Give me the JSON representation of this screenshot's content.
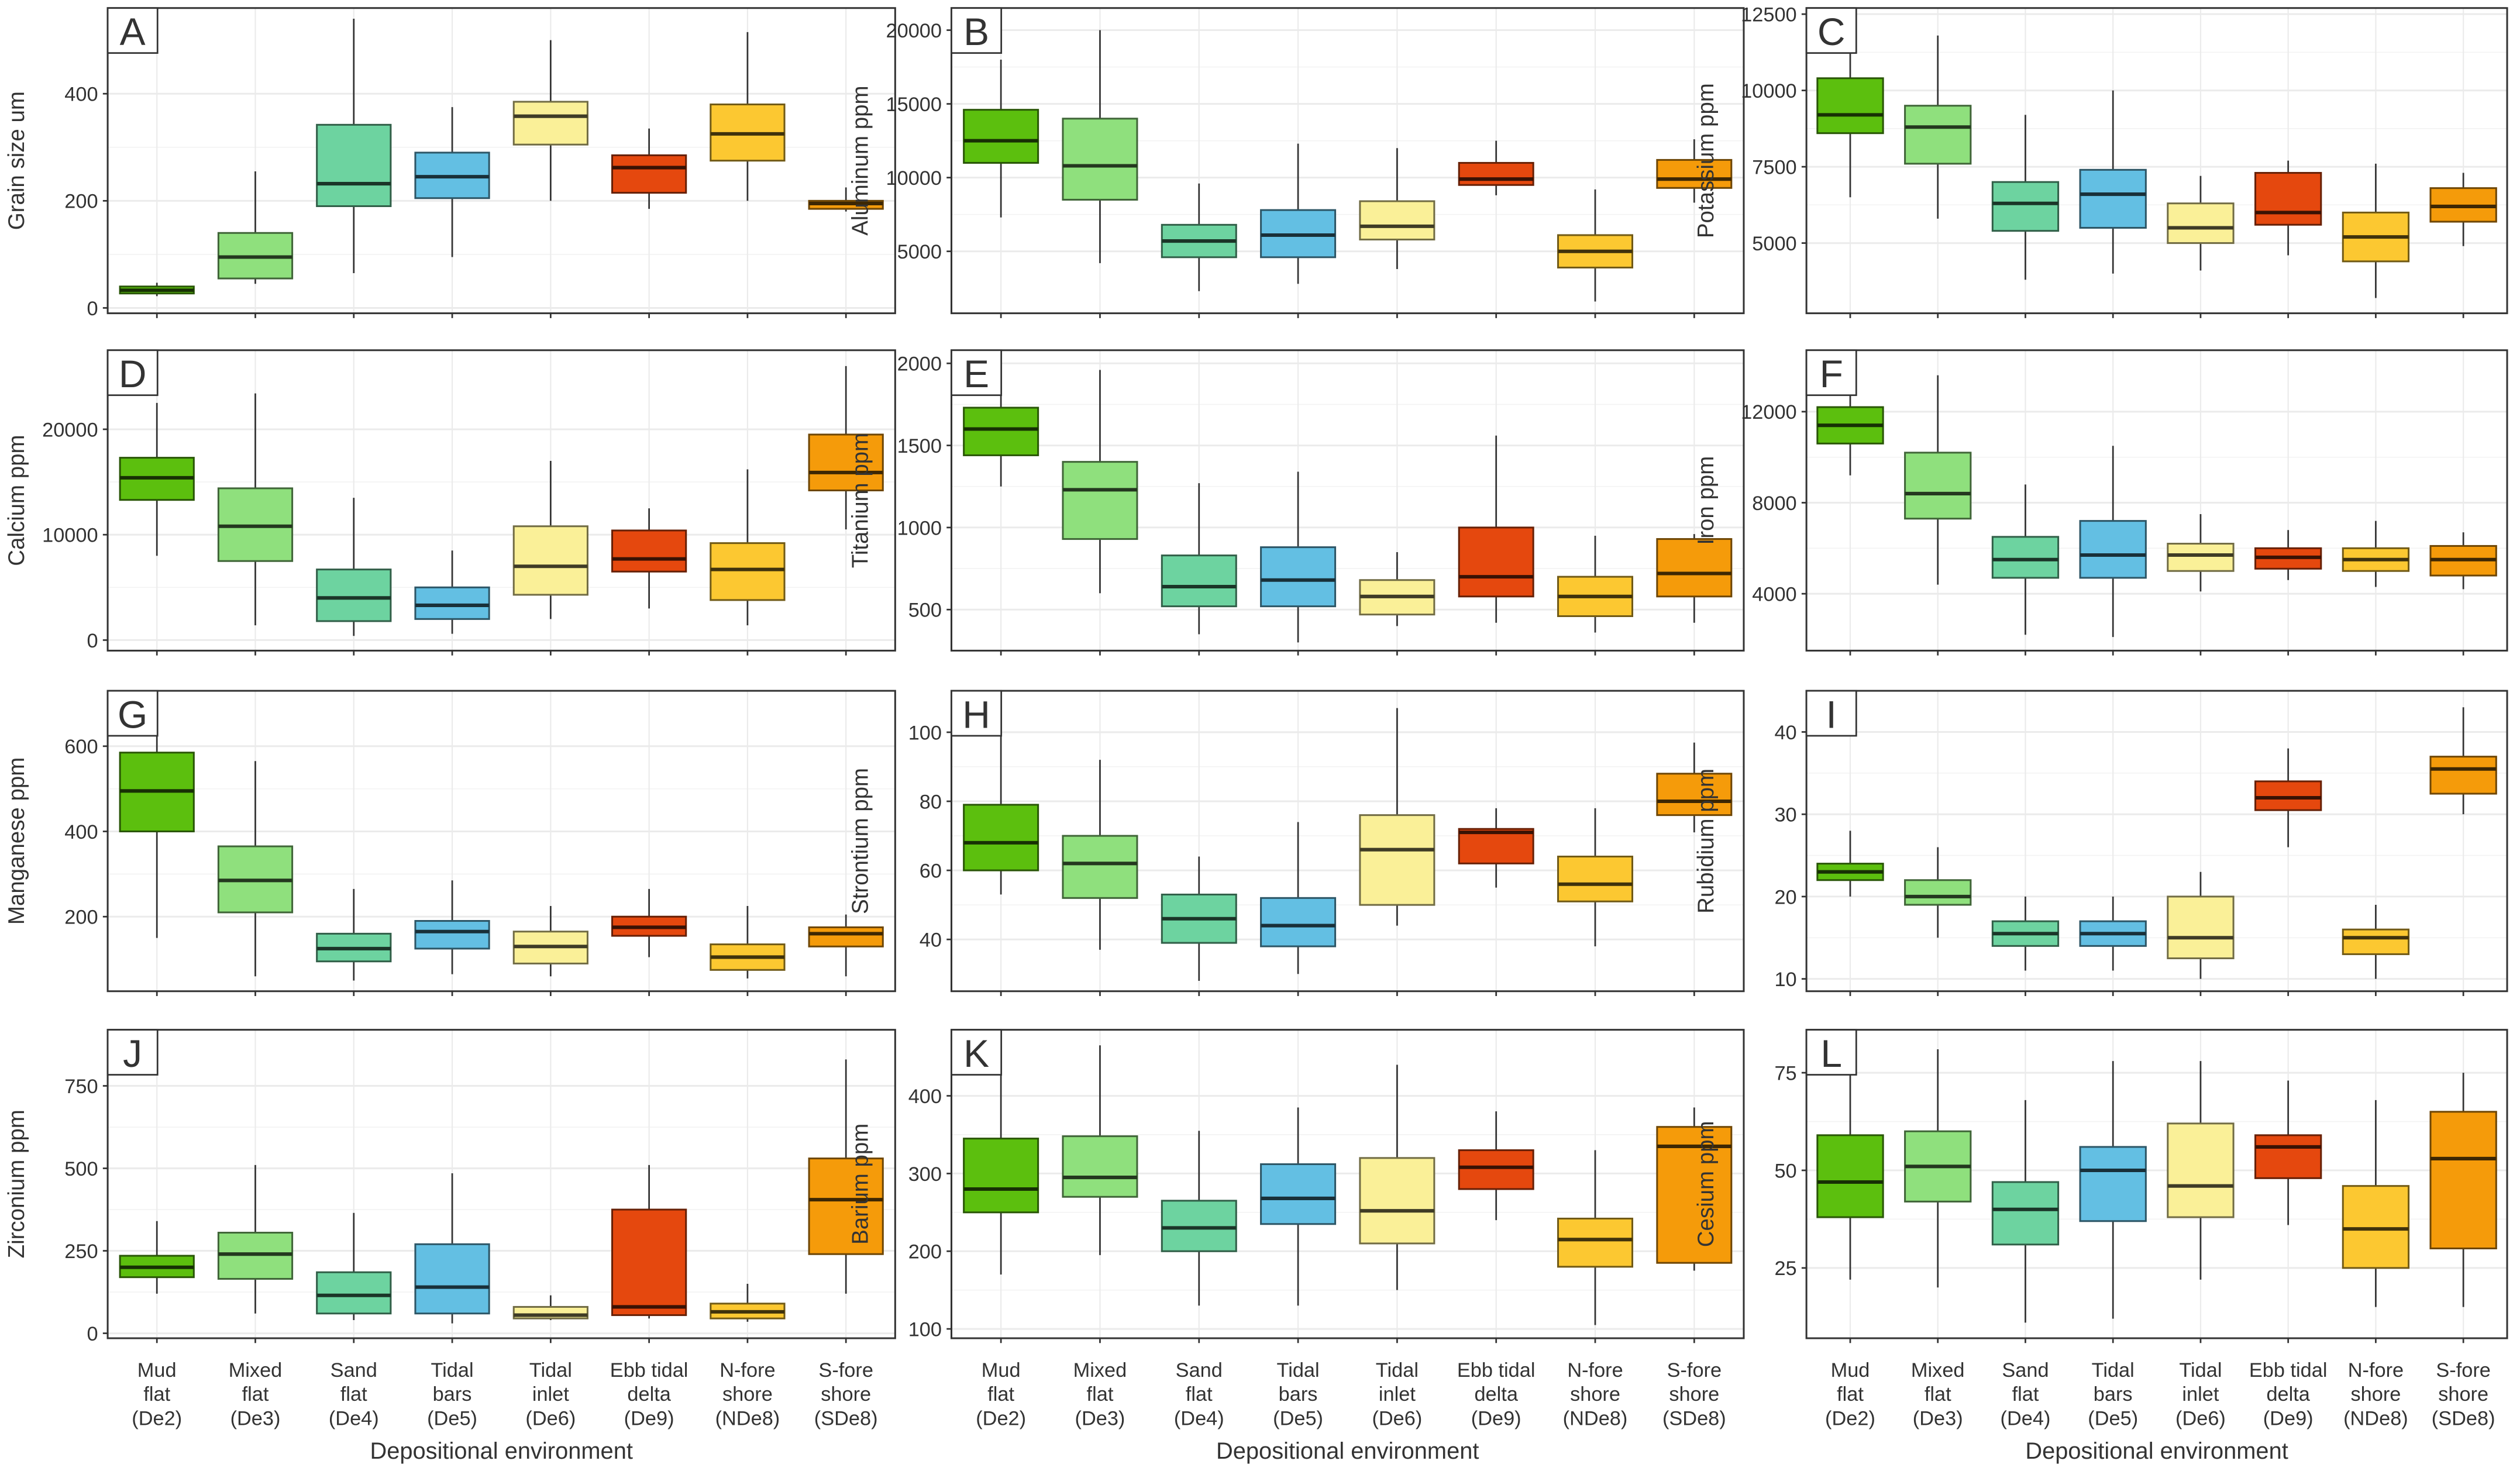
{
  "chart_data": {
    "type": "box",
    "layout": "4x3 grid",
    "categories": [
      [
        "Mud",
        "flat",
        "(De2)"
      ],
      [
        "Mixed",
        "flat",
        "(De3)"
      ],
      [
        "Sand",
        "flat",
        "(De4)"
      ],
      [
        "Tidal",
        "bars",
        "(De5)"
      ],
      [
        "Tidal",
        "inlet",
        "(De6)"
      ],
      [
        "Ebb tidal",
        "delta",
        "(De9)"
      ],
      [
        "N-fore",
        "shore",
        "(NDe8)"
      ],
      [
        "S-fore",
        "shore",
        "(SDe8)"
      ]
    ],
    "colors": [
      "#5cbf0e",
      "#8fe07d",
      "#6dd3a0",
      "#63bfe3",
      "#faf098",
      "#e5480e",
      "#fcc831",
      "#f59b0a"
    ],
    "xlabel": "Depositional environment",
    "box_format": "[min, q1, median, q3, max]",
    "panels": [
      {
        "letter": "A",
        "ylabel": "Grain size um",
        "ylim": [
          -10,
          560
        ],
        "ticks": [
          0,
          200,
          400
        ],
        "tick_labels": [
          "0",
          "200",
          "400"
        ],
        "boxes": [
          [
            22,
            27,
            33,
            40,
            47
          ],
          [
            45,
            55,
            95,
            140,
            255
          ],
          [
            65,
            190,
            232,
            342,
            540
          ],
          [
            95,
            205,
            245,
            290,
            375
          ],
          [
            200,
            305,
            358,
            385,
            500
          ],
          [
            185,
            215,
            262,
            285,
            335
          ],
          [
            200,
            275,
            325,
            380,
            515
          ],
          [
            180,
            185,
            195,
            200,
            225
          ]
        ]
      },
      {
        "letter": "B",
        "ylabel": "Aluminum ppm",
        "ylim": [
          800,
          21500
        ],
        "ticks": [
          5000,
          10000,
          15000,
          20000
        ],
        "tick_labels": [
          "5000",
          "10000",
          "15000",
          "20000"
        ],
        "boxes": [
          [
            7300,
            11000,
            12500,
            14600,
            18000
          ],
          [
            4200,
            8500,
            10800,
            14000,
            20000
          ],
          [
            2300,
            4600,
            5700,
            6800,
            9600
          ],
          [
            2800,
            4600,
            6100,
            7800,
            12300
          ],
          [
            3800,
            5800,
            6700,
            8400,
            12000
          ],
          [
            8800,
            9500,
            9900,
            11000,
            12500
          ],
          [
            1600,
            3900,
            5000,
            6100,
            9200
          ],
          [
            8300,
            9300,
            9900,
            11200,
            12600
          ]
        ]
      },
      {
        "letter": "C",
        "ylabel": "Potassium ppm",
        "ylim": [
          2700,
          12700
        ],
        "ticks": [
          5000,
          7500,
          10000,
          12500
        ],
        "tick_labels": [
          "5000",
          "7500",
          "10000",
          "12500"
        ],
        "boxes": [
          [
            6500,
            8600,
            9200,
            10400,
            12500
          ],
          [
            5800,
            7600,
            8800,
            9500,
            11800
          ],
          [
            3800,
            5400,
            6300,
            7000,
            9200
          ],
          [
            4000,
            5500,
            6600,
            7400,
            10000
          ],
          [
            4100,
            5000,
            5500,
            6300,
            7200
          ],
          [
            4600,
            5600,
            6000,
            7300,
            7700
          ],
          [
            3200,
            4400,
            5200,
            6000,
            7600
          ],
          [
            4900,
            5700,
            6200,
            6800,
            7300
          ]
        ]
      },
      {
        "letter": "D",
        "ylabel": "Calcium ppm",
        "ylim": [
          -1000,
          27500
        ],
        "ticks": [
          0,
          10000,
          20000
        ],
        "tick_labels": [
          "0",
          "10000",
          "20000"
        ],
        "boxes": [
          [
            8000,
            13300,
            15400,
            17300,
            22500
          ],
          [
            1400,
            7500,
            10800,
            14400,
            23400
          ],
          [
            400,
            1800,
            4000,
            6700,
            13500
          ],
          [
            600,
            2000,
            3300,
            5000,
            8500
          ],
          [
            2000,
            4300,
            7000,
            10800,
            17000
          ],
          [
            3000,
            6500,
            7700,
            10400,
            12500
          ],
          [
            1400,
            3800,
            6700,
            9200,
            16200
          ],
          [
            10500,
            14200,
            15900,
            19500,
            26000
          ]
        ]
      },
      {
        "letter": "E",
        "ylabel": "Titanium ppm",
        "ylim": [
          250,
          2080
        ],
        "ticks": [
          500,
          1000,
          1500,
          2000
        ],
        "tick_labels": [
          "500",
          "1000",
          "1500",
          "2000"
        ],
        "boxes": [
          [
            1250,
            1440,
            1600,
            1730,
            2020
          ],
          [
            600,
            930,
            1230,
            1400,
            1960
          ],
          [
            350,
            520,
            640,
            830,
            1270
          ],
          [
            300,
            520,
            680,
            880,
            1340
          ],
          [
            400,
            470,
            580,
            680,
            850
          ],
          [
            420,
            580,
            700,
            1000,
            1560
          ],
          [
            360,
            460,
            580,
            700,
            950
          ],
          [
            420,
            580,
            720,
            930,
            960
          ]
        ]
      },
      {
        "letter": "F",
        "ylabel": "Iron ppm",
        "ylim": [
          1500,
          14700
        ],
        "ticks": [
          4000,
          8000,
          12000
        ],
        "tick_labels": [
          "4000",
          "8000",
          "12000"
        ],
        "boxes": [
          [
            9200,
            10600,
            11400,
            12200,
            13800
          ],
          [
            4400,
            7300,
            8400,
            10200,
            13600
          ],
          [
            2200,
            4700,
            5500,
            6500,
            8800
          ],
          [
            2100,
            4700,
            5700,
            7200,
            10500
          ],
          [
            4100,
            5000,
            5700,
            6200,
            7500
          ],
          [
            4600,
            5100,
            5600,
            6000,
            6800
          ],
          [
            4300,
            5000,
            5500,
            6000,
            7200
          ],
          [
            4200,
            4800,
            5500,
            6100,
            6700
          ]
        ]
      },
      {
        "letter": "G",
        "ylabel": "Manganese ppm",
        "ylim": [
          25,
          730
        ],
        "ticks": [
          200,
          400,
          600
        ],
        "tick_labels": [
          "200",
          "400",
          "600"
        ],
        "boxes": [
          [
            150,
            400,
            495,
            585,
            710
          ],
          [
            60,
            210,
            285,
            365,
            565
          ],
          [
            50,
            95,
            125,
            160,
            265
          ],
          [
            65,
            125,
            165,
            190,
            285
          ],
          [
            60,
            90,
            130,
            165,
            225
          ],
          [
            105,
            155,
            175,
            200,
            265
          ],
          [
            55,
            75,
            105,
            135,
            225
          ],
          [
            60,
            130,
            160,
            175,
            205
          ]
        ]
      },
      {
        "letter": "H",
        "ylabel": "Strontium ppm",
        "ylim": [
          25,
          112
        ],
        "ticks": [
          40,
          60,
          80,
          100
        ],
        "tick_labels": [
          "40",
          "60",
          "80",
          "100"
        ],
        "boxes": [
          [
            53,
            60,
            68,
            79,
            100
          ],
          [
            37,
            52,
            62,
            70,
            92
          ],
          [
            28,
            39,
            46,
            53,
            64
          ],
          [
            30,
            38,
            44,
            52,
            74
          ],
          [
            44,
            50,
            66,
            76,
            107
          ],
          [
            55,
            62,
            71,
            72,
            78
          ],
          [
            38,
            51,
            56,
            64,
            78
          ],
          [
            71,
            76,
            80,
            88,
            97
          ]
        ]
      },
      {
        "letter": "I",
        "ylabel": "Rubidium ppm",
        "ylim": [
          8.5,
          45
        ],
        "ticks": [
          10,
          20,
          30,
          40
        ],
        "tick_labels": [
          "10",
          "20",
          "30",
          "40"
        ],
        "boxes": [
          [
            20,
            22,
            23,
            24,
            28
          ],
          [
            15,
            19,
            20,
            22,
            26
          ],
          [
            11,
            14,
            15.5,
            17,
            20
          ],
          [
            11,
            14,
            15.5,
            17,
            20
          ],
          [
            10,
            12.5,
            15,
            20,
            23
          ],
          [
            26,
            30.5,
            32,
            34,
            38
          ],
          [
            10,
            13,
            15,
            16,
            19
          ],
          [
            30,
            32.5,
            35.5,
            37,
            43
          ]
        ]
      },
      {
        "letter": "J",
        "ylabel": "Zirconium ppm",
        "ylim": [
          -15,
          920
        ],
        "ticks": [
          0,
          250,
          500,
          750
        ],
        "tick_labels": [
          "0",
          "250",
          "500",
          "750"
        ],
        "boxes": [
          [
            120,
            170,
            200,
            235,
            340
          ],
          [
            60,
            165,
            240,
            305,
            510
          ],
          [
            40,
            60,
            115,
            185,
            365
          ],
          [
            30,
            60,
            140,
            270,
            485
          ],
          [
            40,
            45,
            55,
            80,
            115
          ],
          [
            45,
            55,
            80,
            375,
            510
          ],
          [
            35,
            45,
            65,
            90,
            150
          ],
          [
            120,
            240,
            405,
            530,
            830
          ]
        ]
      },
      {
        "letter": "K",
        "ylabel": "Barium ppm",
        "ylim": [
          88,
          485
        ],
        "ticks": [
          100,
          200,
          300,
          400
        ],
        "tick_labels": [
          "100",
          "200",
          "300",
          "400"
        ],
        "boxes": [
          [
            170,
            250,
            280,
            345,
            440
          ],
          [
            195,
            270,
            295,
            348,
            465
          ],
          [
            130,
            200,
            230,
            265,
            355
          ],
          [
            130,
            235,
            268,
            312,
            385
          ],
          [
            150,
            210,
            252,
            320,
            440
          ],
          [
            240,
            280,
            308,
            330,
            380
          ],
          [
            105,
            180,
            215,
            242,
            330
          ],
          [
            175,
            185,
            335,
            360,
            385
          ]
        ]
      },
      {
        "letter": "L",
        "ylabel": "Cesium ppm",
        "ylim": [
          7,
          86
        ],
        "ticks": [
          25,
          50,
          75
        ],
        "tick_labels": [
          "25",
          "50",
          "75"
        ],
        "boxes": [
          [
            22,
            38,
            47,
            59,
            79
          ],
          [
            20,
            42,
            51,
            60,
            81
          ],
          [
            11,
            31,
            40,
            47,
            68
          ],
          [
            12,
            37,
            50,
            56,
            78
          ],
          [
            22,
            38,
            46,
            62,
            78
          ],
          [
            36,
            48,
            56,
            59,
            73
          ],
          [
            15,
            25,
            35,
            46,
            68
          ],
          [
            15,
            30,
            53,
            65,
            75
          ]
        ]
      }
    ]
  }
}
